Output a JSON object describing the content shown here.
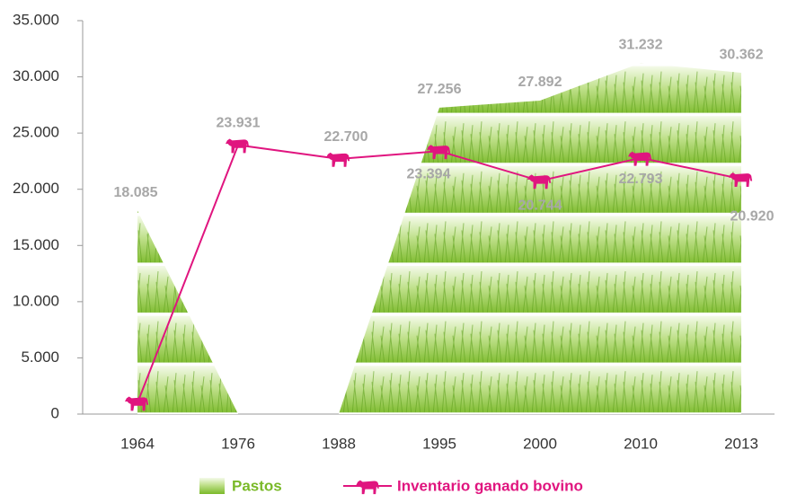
{
  "chart_data": {
    "type": "area-line",
    "categories": [
      "1964",
      "1976",
      "1988",
      "1995",
      "2000",
      "2010",
      "2013"
    ],
    "series": [
      {
        "name": "Pastos",
        "color": "#7ab929",
        "values": [
          18085,
          0,
          0,
          27256,
          27892,
          31232,
          30362
        ],
        "value_labels": [
          "18.085",
          null,
          null,
          "27.256",
          "27.892",
          "31.232",
          "30.362"
        ]
      },
      {
        "name": "Inventario ganado bovino",
        "color": "#e0157f",
        "values": [
          1000,
          23931,
          22700,
          23394,
          20744,
          22793,
          20920
        ],
        "value_labels": [
          null,
          "23.931",
          "22.700",
          "23.394",
          "20.744",
          "22.793",
          "20.920"
        ]
      }
    ],
    "ylim": [
      0,
      35000
    ],
    "yticks": [
      {
        "value": 0,
        "label": "0"
      },
      {
        "value": 5000,
        "label": "5.000"
      },
      {
        "value": 10000,
        "label": "10.000"
      },
      {
        "value": 15000,
        "label": "15.000"
      },
      {
        "value": 20000,
        "label": "20.000"
      },
      {
        "value": 25000,
        "label": "25.000"
      },
      {
        "value": 30000,
        "label": "30.000"
      },
      {
        "value": 35000,
        "label": "35.000"
      }
    ]
  }
}
